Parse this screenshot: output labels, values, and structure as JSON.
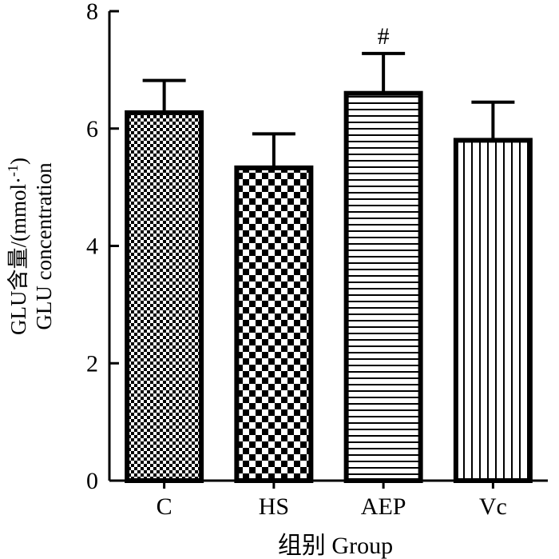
{
  "chart_data": {
    "type": "bar",
    "categories": [
      "C",
      "HS",
      "AEP",
      "Vc"
    ],
    "values": [
      6.27,
      5.33,
      6.6,
      5.8
    ],
    "errors": [
      0.55,
      0.58,
      0.68,
      0.65
    ],
    "annotations": [
      "",
      "",
      "#",
      ""
    ],
    "patterns": [
      "fine-checker",
      "checker",
      "horizontal-lines",
      "vertical-lines"
    ],
    "ylim": [
      0,
      8
    ],
    "yticks": [
      0,
      2,
      4,
      6,
      8
    ],
    "xlabel": "组别 Group",
    "ylabel_line1": "GLU含量/(mmol·",
    "ylabel_sup": "-1",
    "ylabel_close": ")",
    "ylabel_line2": "GLU concentration",
    "grid": false,
    "colors": {
      "ink": "#000000",
      "background": "#ffffff"
    }
  }
}
